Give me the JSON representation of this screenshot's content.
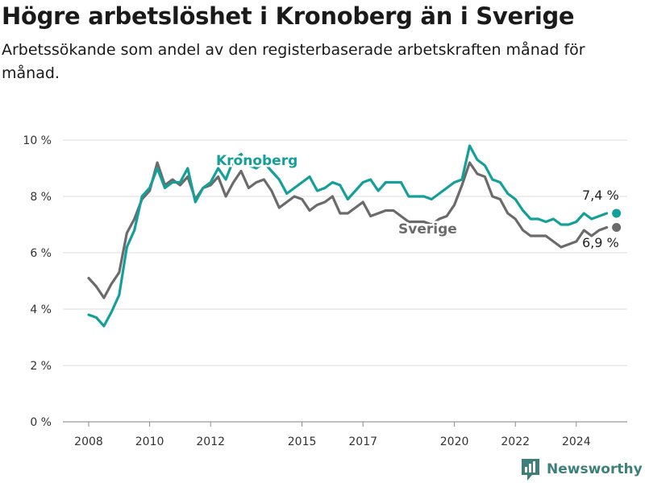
{
  "title": "Högre arbetslöshet i Kronoberg än i Sverige",
  "subtitle": "Arbetssökande som andel av den registerbaserade arbetskraften månad för månad.",
  "brand": {
    "name": "Newsworthy",
    "icon": "newsworthy-logo-icon",
    "color": "#3f7f7a"
  },
  "chart_data": {
    "type": "line",
    "title": "Högre arbetslöshet i Kronoberg än i Sverige",
    "xlabel": "",
    "ylabel": "",
    "ylim": [
      0,
      10
    ],
    "y_unit": "%",
    "y_ticks": [
      0,
      2,
      4,
      6,
      8,
      10
    ],
    "y_tick_labels": [
      "0 %",
      "2 %",
      "4 %",
      "6 %",
      "8 %",
      "10 %"
    ],
    "x_range": [
      "2007-01",
      "2025-12"
    ],
    "x_ticks": [
      "2008",
      "2010",
      "2012",
      "2015",
      "2017",
      "2020",
      "2022",
      "2024"
    ],
    "grid": "horizontal",
    "legend": "inline labels",
    "x": [
      "2008-01",
      "2008-04",
      "2008-07",
      "2008-10",
      "2009-01",
      "2009-04",
      "2009-07",
      "2009-10",
      "2010-01",
      "2010-04",
      "2010-07",
      "2010-10",
      "2011-01",
      "2011-04",
      "2011-07",
      "2011-10",
      "2012-01",
      "2012-04",
      "2012-07",
      "2012-10",
      "2013-01",
      "2013-04",
      "2013-07",
      "2013-10",
      "2014-01",
      "2014-04",
      "2014-07",
      "2014-10",
      "2015-01",
      "2015-04",
      "2015-07",
      "2015-10",
      "2016-01",
      "2016-04",
      "2016-07",
      "2016-10",
      "2017-01",
      "2017-04",
      "2017-07",
      "2017-10",
      "2018-01",
      "2018-04",
      "2018-07",
      "2018-10",
      "2019-01",
      "2019-04",
      "2019-07",
      "2019-10",
      "2020-01",
      "2020-04",
      "2020-07",
      "2020-10",
      "2021-01",
      "2021-04",
      "2021-07",
      "2021-10",
      "2022-01",
      "2022-04",
      "2022-07",
      "2022-10",
      "2023-01",
      "2023-04",
      "2023-07",
      "2023-10",
      "2024-01",
      "2024-04",
      "2024-07",
      "2024-10",
      "2025-01"
    ],
    "series": [
      {
        "name": "Kronoberg",
        "color": "#14a098",
        "values": [
          3.8,
          3.7,
          3.4,
          3.9,
          4.5,
          6.2,
          6.8,
          8.0,
          8.3,
          9.0,
          8.3,
          8.5,
          8.5,
          9.0,
          7.8,
          8.3,
          8.5,
          9.0,
          8.6,
          9.3,
          9.5,
          9.1,
          9.0,
          9.2,
          8.9,
          8.6,
          8.1,
          8.3,
          8.5,
          8.7,
          8.2,
          8.3,
          8.5,
          8.4,
          7.9,
          8.2,
          8.5,
          8.6,
          8.2,
          8.5,
          8.5,
          8.5,
          8.0,
          8.0,
          8.0,
          7.9,
          8.1,
          8.3,
          8.5,
          8.6,
          9.8,
          9.3,
          9.1,
          8.6,
          8.5,
          8.1,
          7.9,
          7.5,
          7.2,
          7.2,
          7.1,
          7.2,
          7.0,
          7.0,
          7.1,
          7.4,
          7.2,
          7.3,
          7.4
        ]
      },
      {
        "name": "Sverige",
        "color": "#6b6b6b",
        "values": [
          5.1,
          4.8,
          4.4,
          4.9,
          5.3,
          6.7,
          7.2,
          7.9,
          8.2,
          9.2,
          8.4,
          8.6,
          8.4,
          8.7,
          7.9,
          8.3,
          8.4,
          8.7,
          8.0,
          8.5,
          8.9,
          8.3,
          8.5,
          8.6,
          8.2,
          7.6,
          7.8,
          8.0,
          7.9,
          7.5,
          7.7,
          7.8,
          8.0,
          7.4,
          7.4,
          7.6,
          7.8,
          7.3,
          7.4,
          7.5,
          7.5,
          7.3,
          7.1,
          7.1,
          7.1,
          7.0,
          7.2,
          7.3,
          7.7,
          8.4,
          9.2,
          8.8,
          8.7,
          8.0,
          7.9,
          7.4,
          7.2,
          6.8,
          6.6,
          6.6,
          6.6,
          6.4,
          6.2,
          6.3,
          6.4,
          6.8,
          6.6,
          6.8,
          6.9
        ]
      }
    ],
    "series_labels": {
      "Kronoberg": "Kronoberg",
      "Sverige": "Sverige"
    },
    "end_labels": [
      "7,4 %",
      "6,9 %"
    ]
  }
}
